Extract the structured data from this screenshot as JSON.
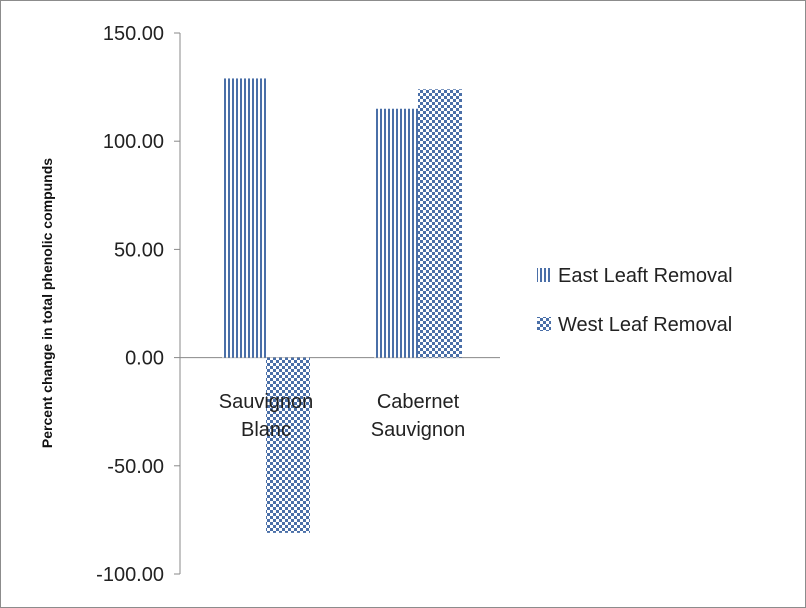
{
  "chart_data": {
    "type": "bar",
    "title": "",
    "xlabel": "",
    "ylabel": "Percent change in total phenolic compunds",
    "categories": [
      [
        "Sauvignon",
        "Blanc"
      ],
      [
        "Cabernet",
        "Sauvignon"
      ]
    ],
    "series": [
      {
        "name": "East Leaft Removal",
        "values": [
          129,
          115
        ],
        "pattern": "vertical-lines",
        "color": "#4a6fa8"
      },
      {
        "name": "West Leaf Removal",
        "values": [
          -81,
          124
        ],
        "pattern": "checkerboard",
        "color": "#4a6fa8"
      }
    ],
    "ylim": [
      -100,
      150
    ],
    "yticks": [
      "150.00",
      "100.00",
      "50.00",
      "0.00",
      "-50.00",
      "-100.00"
    ],
    "ytick_values": [
      150,
      100,
      50,
      0,
      -50,
      -100
    ],
    "grid": false,
    "legend_position": "right"
  }
}
